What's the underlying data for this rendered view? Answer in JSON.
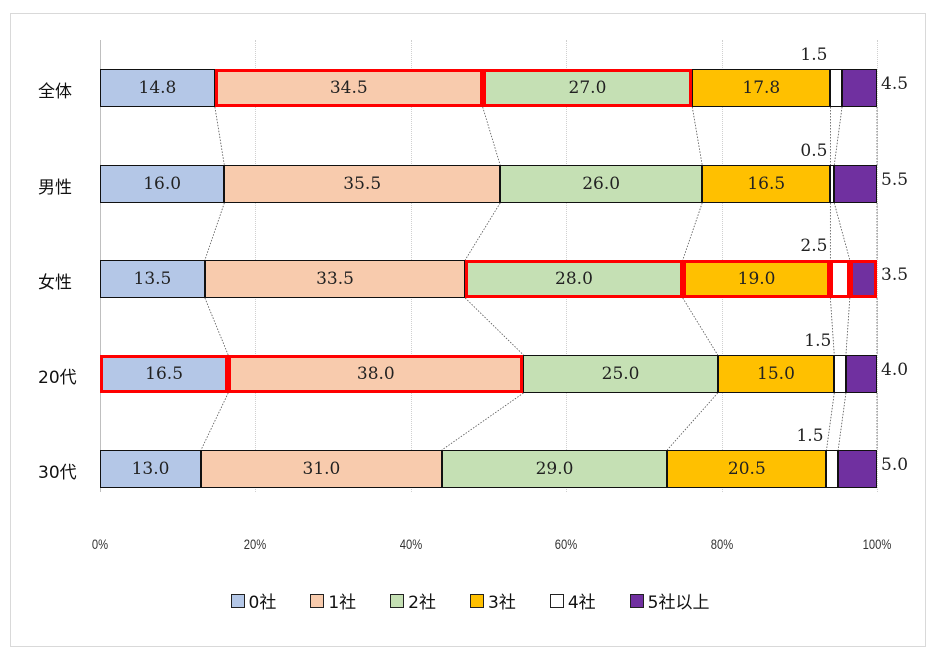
{
  "chart_data": {
    "type": "bar",
    "orientation": "horizontal",
    "stacked": "percent",
    "title": "",
    "xlabel": "",
    "ylabel": "",
    "xlim": [
      0,
      100
    ],
    "x_ticks": [
      "0%",
      "20%",
      "40%",
      "60%",
      "80%",
      "100%"
    ],
    "grid": true,
    "legend_position": "bottom",
    "categories": [
      "全体",
      "男性",
      "女性",
      "20代",
      "30代"
    ],
    "series": [
      {
        "name": "0社",
        "color": "#b4c7e7",
        "values": [
          14.8,
          16.0,
          13.5,
          16.5,
          13.0
        ]
      },
      {
        "name": "1社",
        "color": "#f8cbad",
        "values": [
          34.5,
          35.5,
          33.5,
          38.0,
          31.0
        ]
      },
      {
        "name": "2社",
        "color": "#c5e0b4",
        "values": [
          27.0,
          26.0,
          28.0,
          25.0,
          29.0
        ]
      },
      {
        "name": "3社",
        "color": "#ffc000",
        "values": [
          17.8,
          16.5,
          19.0,
          15.0,
          20.5
        ]
      },
      {
        "name": "4社",
        "color": "#ffffff",
        "values": [
          1.5,
          0.5,
          2.5,
          1.5,
          1.5
        ]
      },
      {
        "name": "5社以上",
        "color": "#7030a0",
        "values": [
          4.5,
          5.5,
          3.5,
          4.0,
          5.0
        ]
      }
    ],
    "highlights": [
      {
        "category": "全体",
        "series": [
          "1社",
          "2社"
        ]
      },
      {
        "category": "女性",
        "series": [
          "2社",
          "3社",
          "4社",
          "5社以上"
        ]
      },
      {
        "category": "20代",
        "series": [
          "0社",
          "1社"
        ]
      }
    ],
    "highlight_color": "#ff0000",
    "series_lines": "dotted connectors between bars"
  },
  "legend": [
    {
      "label": "0社"
    },
    {
      "label": "1社"
    },
    {
      "label": "2社"
    },
    {
      "label": "3社"
    },
    {
      "label": "4社"
    },
    {
      "label": "5社以上"
    }
  ]
}
